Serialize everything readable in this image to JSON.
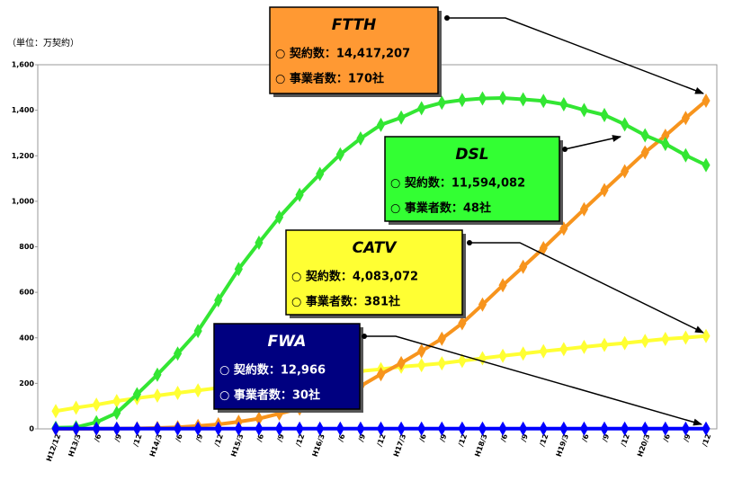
{
  "chart_data": {
    "type": "line",
    "unit_label": "（単位：万契約）",
    "categories": [
      "H12/12",
      "H13/3",
      "/6",
      "/9",
      "/12",
      "H14/3",
      "/6",
      "/9",
      "/12",
      "H15/3",
      "/6",
      "/9",
      "/12",
      "H16/3",
      "/6",
      "/9",
      "/12",
      "H17/3",
      "/6",
      "/9",
      "/12",
      "H18/3",
      "/6",
      "/9",
      "/12",
      "H19/3",
      "/6",
      "/9",
      "/12",
      "H20/3",
      "/6",
      "/9",
      "/12"
    ],
    "ylim": [
      0,
      1600
    ],
    "yticks": [
      0,
      200,
      400,
      600,
      800,
      {
        "value": 1000,
        "label": "1,000"
      },
      {
        "value": 1200,
        "label": "1,200"
      },
      {
        "value": 1400,
        "label": "1,400"
      },
      {
        "value": 1600,
        "label": "1,600"
      }
    ],
    "series": [
      {
        "name": "FTTH",
        "color": "#f7941d",
        "values": [
          0,
          0.1,
          0.5,
          1,
          2,
          4,
          7,
          13,
          20,
          31,
          45,
          67,
          89,
          114,
          147,
          188,
          240,
          289,
          342,
          396,
          464,
          546,
          631,
          712,
          794,
          880,
          965,
          1049,
          1132,
          1215,
          1288,
          1366,
          1442
        ]
      },
      {
        "name": "DSL",
        "color": "#33e633",
        "values": [
          5,
          7,
          29,
          70,
          152,
          238,
          331,
          430,
          565,
          702,
          818,
          930,
          1028,
          1120,
          1206,
          1276,
          1336,
          1368,
          1409,
          1433,
          1445,
          1452,
          1454,
          1448,
          1441,
          1426,
          1401,
          1379,
          1338,
          1290,
          1252,
          1202,
          1159
        ]
      },
      {
        "name": "CATV",
        "color": "#ffff33",
        "values": [
          78,
          93,
          106,
          122,
          135,
          146,
          158,
          169,
          180,
          187,
          199,
          213,
          221,
          230,
          240,
          254,
          262,
          273,
          280,
          288,
          299,
          310,
          321,
          331,
          341,
          350,
          360,
          369,
          377,
          386,
          395,
          401,
          408
        ]
      },
      {
        "name": "FWA",
        "color": "#0000ff",
        "values": [
          1,
          1,
          1,
          1,
          1,
          1,
          1,
          1,
          1,
          1,
          1,
          1,
          1,
          1,
          1,
          1,
          1,
          1,
          1,
          1,
          1,
          1,
          1,
          1,
          1,
          1,
          1,
          1,
          1,
          1,
          1,
          1,
          1
        ]
      }
    ],
    "annotations": [
      {
        "color": "#ff9933",
        "text_color": "#000000",
        "lines": [
          "○ 契約数：14,417,207",
          "○ 事業者数：170社"
        ]
      },
      {
        "color": "#33ff33",
        "text_color": "#000000",
        "lines": [
          "○ 契約数：11,594,082",
          "○ 事業者数：48社"
        ]
      },
      {
        "color": "#ffff33",
        "text_color": "#000000",
        "lines": [
          "○ 契約数：4,083,072",
          "○ 事業者数：381社"
        ]
      },
      {
        "color": "#000080",
        "text_color": "#ffffff",
        "lines": [
          "○ 契約数：12,966",
          "○ 事業者数：30社"
        ]
      }
    ]
  }
}
